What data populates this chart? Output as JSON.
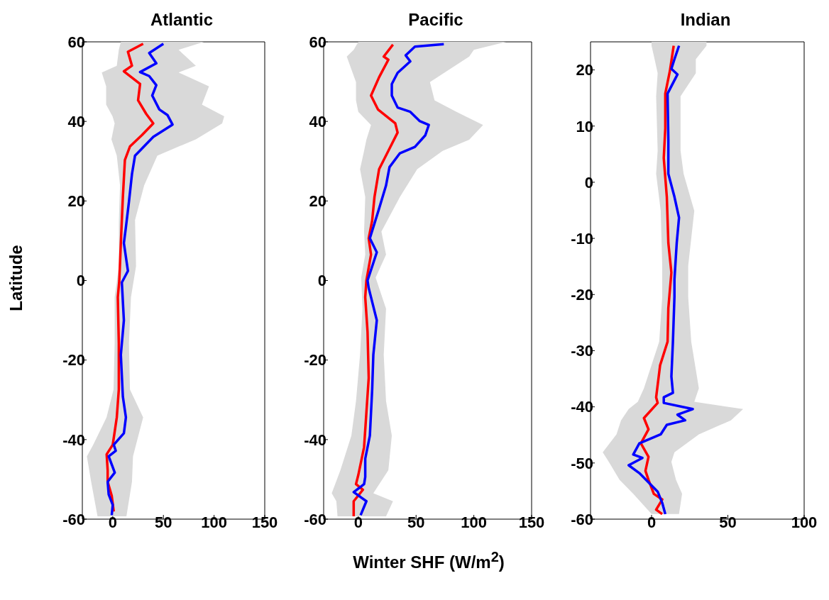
{
  "chart_data": [
    {
      "type": "line",
      "title": "Atlantic",
      "ylabel": "Latitude",
      "orientation": "horizontal",
      "xlim": [
        -30,
        150
      ],
      "xticks": [
        0,
        50,
        100,
        150
      ],
      "ylim": [
        -60,
        60
      ],
      "yticks": [
        -60,
        -40,
        -20,
        0,
        20,
        40,
        60
      ],
      "marker": "none",
      "series": [
        {
          "type": "area",
          "color": "#d9d9d9",
          "values": [
            null,
            null,
            null,
            null,
            null,
            null,
            null,
            null,
            null,
            null,
            null,
            null,
            null,
            null,
            null,
            null,
            null,
            null,
            null,
            null,
            null
          ],
          "x": [
            60,
            58,
            54,
            52.3,
            48.8,
            44.2,
            41.3,
            39.5,
            35.5,
            31.4,
            23.9,
            15.2,
            3.6,
            -4.2,
            -15.8,
            -27.4,
            -34.4,
            -41.3,
            -44.2,
            -50.6,
            -59.3
          ],
          "lower": [
            8,
            6,
            4,
            -10.8,
            -6.5,
            -6.5,
            -0.2,
            1.9,
            -1.3,
            4,
            7.2,
            6.1,
            6.1,
            1.9,
            1.9,
            0.8,
            -6.1,
            -19.2,
            -25.5,
            -21.3,
            -15
          ],
          "upper": [
            90,
            65,
            82,
            65,
            95,
            88,
            110,
            108,
            82,
            44,
            31,
            22,
            23,
            18,
            16,
            17,
            30,
            23,
            20,
            19,
            13.5
          ]
        },
        {
          "color": "#ff0000",
          "x": [
            59.5,
            57.5,
            54,
            52.6,
            49.4,
            45.3,
            41.9,
            39.5,
            36.6,
            33.7,
            30.3,
            21,
            9.4,
            0,
            -4.2,
            -15.8,
            -27.4,
            -34.4,
            -37.9,
            -41.3,
            -43.7,
            -47.7,
            -50.6,
            -54.1,
            -58.1
          ],
          "values": [
            30,
            15,
            19,
            11,
            27,
            25,
            33,
            40,
            29,
            17,
            12,
            10,
            8,
            6.5,
            5,
            6,
            6,
            4,
            2,
            0,
            -6,
            -5,
            -5,
            -1,
            1
          ]
        },
        {
          "color": "#0000ff",
          "x": [
            59.5,
            57.2,
            54.6,
            52.4,
            51.4,
            49.1,
            46.5,
            43,
            41.6,
            39.2,
            36.1,
            33.2,
            31.4,
            26.8,
            19.8,
            13.4,
            9.4,
            2.4,
            -0.5,
            -10,
            -18.7,
            -29.2,
            -34.4,
            -38.4,
            -41.3,
            -42.8,
            -44.2,
            -48.3,
            -50.6,
            -53.8,
            -56.4,
            -59
          ],
          "values": [
            50,
            36,
            43,
            27,
            36,
            43,
            39,
            46,
            54,
            59,
            40,
            29,
            22,
            19,
            16,
            13,
            11,
            15,
            9,
            11,
            8,
            10,
            13,
            11,
            1,
            3,
            -4,
            2,
            -5,
            -4,
            0,
            -1
          ]
        }
      ]
    },
    {
      "type": "line",
      "title": "Pacific",
      "xlabel": "Winter SHF (W/m$^{2}$)",
      "orientation": "horizontal",
      "xlim": [
        -30,
        150
      ],
      "xticks": [
        0,
        50,
        100,
        150
      ],
      "ylim": [
        -60,
        60
      ],
      "yticks": [
        -60,
        -40,
        -20,
        0,
        20,
        40,
        60
      ],
      "marker": "none",
      "series": [
        {
          "type": "area",
          "color": "#d9d9d9",
          "values": [
            null,
            null,
            null,
            null,
            null,
            null,
            null,
            null,
            null,
            null,
            null,
            null,
            null,
            null,
            null,
            null,
            null,
            null,
            null,
            null,
            null,
            null
          ],
          "x": [
            60,
            58,
            56.3,
            49.9,
            45.3,
            42.4,
            39.1,
            35.4,
            32.6,
            28,
            21,
            12.3,
            6.5,
            0.7,
            -7.1,
            -18.7,
            -30.3,
            -39,
            -47.7,
            -53.5,
            -55.5,
            -59.3
          ],
          "lower": [
            0,
            -4,
            -10,
            -2,
            -2,
            0,
            11,
            7,
            5,
            1.5,
            6,
            5,
            6,
            2.5,
            3.6,
            1.5,
            -2,
            -6,
            -15.5,
            -23,
            -19,
            -18
          ],
          "upper": [
            128,
            100,
            96,
            62,
            66,
            85,
            108,
            96,
            73,
            51,
            36,
            20,
            24,
            15,
            24,
            22,
            24,
            29,
            26,
            13,
            30,
            24
          ]
        },
        {
          "color": "#ff0000",
          "x": [
            59.3,
            56.3,
            55.5,
            51.1,
            46.5,
            43,
            39.5,
            37.2,
            32.6,
            28,
            21,
            15.1,
            10.6,
            6.5,
            0,
            -4.2,
            -12.9,
            -24.5,
            -33.2,
            -41.9,
            -48.9,
            -51.2,
            -52.6,
            -55.5,
            -59.3
          ],
          "values": [
            30,
            22,
            26,
            18,
            11,
            17,
            32,
            34,
            26,
            18,
            14,
            12,
            9,
            11,
            7,
            6,
            8,
            9,
            7,
            5,
            0,
            -2,
            4,
            -4,
            -4
          ]
        },
        {
          "color": "#0000ff",
          "x": [
            59.4,
            58.8,
            56.6,
            55.1,
            52.2,
            49.4,
            46.5,
            43.5,
            42.4,
            40.1,
            39.1,
            36.5,
            33.6,
            32,
            28.5,
            23.9,
            18.1,
            10.6,
            7.1,
            0,
            -1.9,
            -10,
            -18.7,
            -27.4,
            -39,
            -44.8,
            -49.4,
            -51.2,
            -53.2,
            -55.5,
            -59
          ],
          "values": [
            74,
            49,
            41,
            45,
            34,
            29,
            29,
            34,
            45,
            53,
            61,
            58,
            49,
            36,
            27,
            24,
            18,
            10,
            16,
            8,
            9,
            16,
            13,
            12,
            10,
            6,
            6,
            5,
            -4,
            7,
            2
          ]
        }
      ]
    },
    {
      "type": "line",
      "title": "Indian",
      "orientation": "horizontal",
      "xlim": [
        -40,
        100
      ],
      "xticks": [
        0,
        50,
        100
      ],
      "ylim": [
        -60,
        25
      ],
      "yticks": [
        -60,
        -50,
        -40,
        -30,
        -20,
        -10,
        0,
        10,
        20
      ],
      "marker": "none",
      "series": [
        {
          "type": "area",
          "color": "#d9d9d9",
          "values": [
            null,
            null,
            null,
            null,
            null,
            null,
            null,
            null,
            null,
            null,
            null,
            null,
            null,
            null,
            null,
            null,
            null,
            null,
            null,
            null,
            null
          ],
          "x": [
            25,
            24.3,
            21.9,
            19.4,
            15.3,
            5.6,
            1.5,
            -5.1,
            -14.9,
            -20.4,
            -28.4,
            -36.7,
            -39.1,
            -40.4,
            -42.4,
            -44.9,
            -48.1,
            -49.8,
            -53,
            -55.5,
            -59.1
          ],
          "lower": [
            0,
            0,
            2,
            4,
            3,
            4,
            3,
            6,
            7,
            7,
            5,
            -5,
            -9,
            -15,
            -20,
            -23,
            -32,
            -28,
            -21,
            -12,
            0
          ],
          "upper": [
            36,
            36,
            29,
            29,
            19,
            19,
            21,
            28,
            24,
            24,
            26,
            31,
            28,
            60,
            52,
            31,
            15,
            13,
            16,
            20,
            18
          ]
        },
        {
          "color": "#ff0000",
          "x": [
            24.3,
            19.8,
            15.8,
            9.6,
            4.3,
            -2.6,
            -10.8,
            -16.1,
            -22.4,
            -28.4,
            -32.6,
            -38.3,
            -39.3,
            -42,
            -44,
            -46.5,
            -48.9,
            -51.4,
            -53,
            -55.5,
            -56.5,
            -58.3,
            -59.1
          ],
          "values": [
            14.5,
            12,
            9,
            9,
            8,
            10,
            11,
            13,
            11,
            10.5,
            5.6,
            3,
            4,
            -5,
            -2,
            -7,
            -2,
            -4,
            -2,
            1.5,
            7,
            3,
            7
          ]
        },
        {
          "color": "#0000ff",
          "x": [
            24.3,
            21.9,
            20.2,
            19.2,
            15.8,
            7.6,
            1.5,
            -2.6,
            -6.3,
            -10.8,
            -17.3,
            -20.4,
            -28.4,
            -34.6,
            -37.5,
            -38.3,
            -39.3,
            -40.4,
            -41.4,
            -42.4,
            -43.2,
            -44.9,
            -46.5,
            -48.5,
            -49.1,
            -50.4,
            -51.8,
            -55.1,
            -57.1,
            -59.1
          ],
          "values": [
            18,
            15,
            13,
            17,
            10.5,
            11,
            11,
            15,
            18,
            16.5,
            15,
            15,
            14,
            13,
            14,
            8,
            8,
            27,
            17,
            22,
            10,
            6,
            -8,
            -12,
            -6,
            -15,
            -8,
            4,
            7,
            9
          ]
        }
      ]
    }
  ]
}
